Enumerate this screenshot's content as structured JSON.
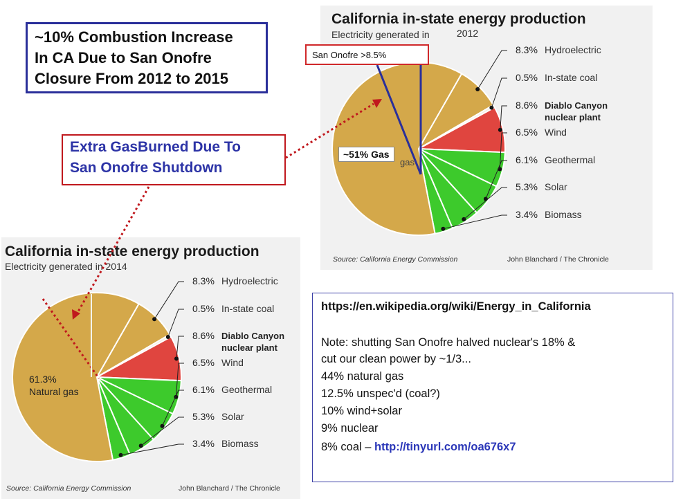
{
  "callout_top": {
    "lines": [
      "~10% Combustion Increase",
      "In CA Due to San Onofre",
      "Closure From 2012 to 2015"
    ]
  },
  "callout_mid": {
    "lines": [
      "Extra GasBurned Due To",
      "San Onofre Shutdown"
    ]
  },
  "san_onofre_box": "San Onofre >8.5%",
  "gas_box": "~51% Gas",
  "chart_data": [
    {
      "type": "pie",
      "title": "California in-state energy production",
      "subtitle": "Electricity generated in",
      "year": "2012",
      "source": "Source: California Energy Commission",
      "credit": "John Blanchard / The Chronicle",
      "slices": [
        {
          "name": "Hydroelectric",
          "value": 8.3,
          "label": "8.3%",
          "color": "#d4a84a"
        },
        {
          "name": "In-state coal",
          "value": 0.5,
          "label": "0.5%",
          "color": "#f3efe2"
        },
        {
          "name": "Diablo Canyon nuclear plant",
          "value": 8.6,
          "label": "8.6%",
          "color": "#e0453f"
        },
        {
          "name": "Wind",
          "value": 6.5,
          "label": "6.5%",
          "color": "#3dca2c"
        },
        {
          "name": "Geothermal",
          "value": 6.1,
          "label": "6.1%",
          "color": "#3dca2c"
        },
        {
          "name": "Solar",
          "value": 5.3,
          "label": "5.3%",
          "color": "#3dca2c"
        },
        {
          "name": "Biomass",
          "value": 3.4,
          "label": "3.4%",
          "color": "#3dca2c"
        },
        {
          "name": "Natural gas",
          "value": 61.3,
          "label": "",
          "color": "#d4a84a"
        }
      ],
      "gas_label_partial": "gas"
    },
    {
      "type": "pie",
      "title": "California in-state energy production",
      "subtitle": "Electricity generated in 2014",
      "source": "Source: California Energy Commission",
      "credit": "John Blanchard / The Chronicle",
      "slices": [
        {
          "name": "Hydroelectric",
          "value": 8.3,
          "label": "8.3%",
          "color": "#d4a84a"
        },
        {
          "name": "In-state coal",
          "value": 0.5,
          "label": "0.5%",
          "color": "#f3efe2"
        },
        {
          "name": "Diablo Canyon nuclear plant",
          "value": 8.6,
          "label": "8.6%",
          "color": "#e0453f"
        },
        {
          "name": "Wind",
          "value": 6.5,
          "label": "6.5%",
          "color": "#3dca2c"
        },
        {
          "name": "Geothermal",
          "value": 6.1,
          "label": "6.1%",
          "color": "#3dca2c"
        },
        {
          "name": "Solar",
          "value": 5.3,
          "label": "5.3%",
          "color": "#3dca2c"
        },
        {
          "name": "Biomass",
          "value": 3.4,
          "label": "3.4%",
          "color": "#3dca2c"
        },
        {
          "name": "Natural gas",
          "value": 61.3,
          "label": "61.3%",
          "color": "#d4a84a"
        }
      ],
      "gas_label_pct": "61.3%",
      "gas_label_name": "Natural gas"
    }
  ],
  "notes": {
    "url": "https://en.wikipedia.org/wiki/Energy_in_California",
    "line1": "Note: shutting San Onofre halved nuclear's 18% &",
    "line2": "cut our clean power by ~1/3...",
    "line3": "44%  natural gas",
    "line4": "12.5%  unspec'd (coal?)",
    "line5": "10%   wind+solar",
    "line6": " 9%   nuclear",
    "line7_prefix": " 8%   coal – ",
    "line7_link": "http://tinyurl.com/oa676x7"
  },
  "colors": {
    "accent_blue": "#2a2f9a",
    "accent_red": "#c0181d",
    "gas": "#d4a84a",
    "nuclear": "#e0453f",
    "renewable": "#3dca2c"
  }
}
